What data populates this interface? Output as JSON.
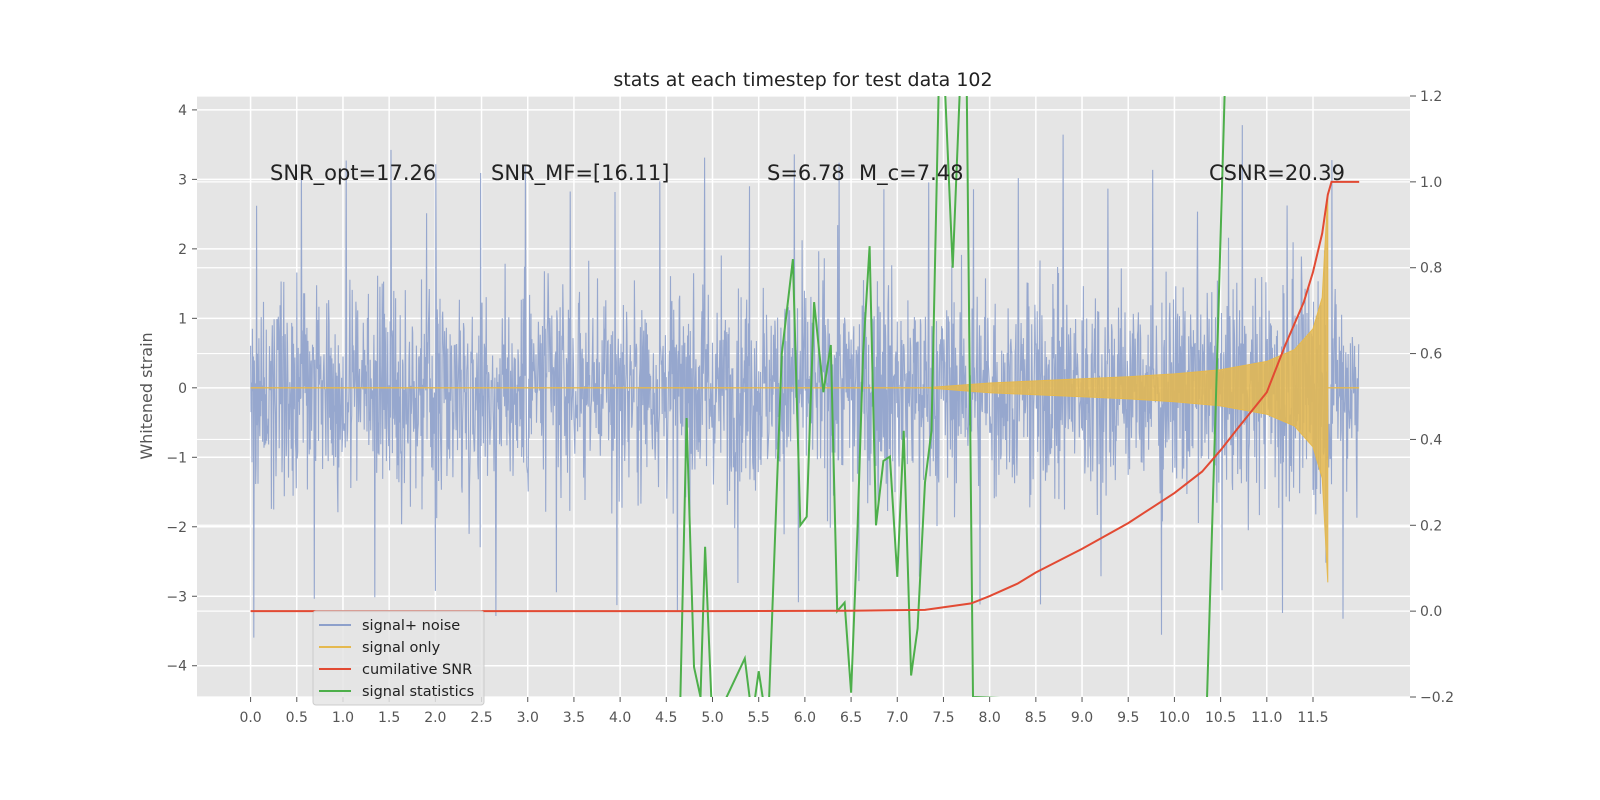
{
  "chart_data": {
    "type": "line",
    "title": "stats at each timestep for test data 102",
    "ylabel": "Whitened strain",
    "ylabel_right": "",
    "xlabel": "",
    "xlim": [
      -0.58,
      12.55
    ],
    "ylim": [
      -4.45,
      4.2
    ],
    "ylim_right": [
      -0.2,
      1.2
    ],
    "x_ticks": [
      "0.0",
      "0.5",
      "1.0",
      "1.5",
      "2.0",
      "2.5",
      "3.0",
      "3.5",
      "4.0",
      "4.5",
      "5.0",
      "5.5",
      "6.0",
      "6.5",
      "7.0",
      "7.5",
      "8.0",
      "8.5",
      "9.0",
      "9.5",
      "10.0",
      "10.5",
      "11.0",
      "11.5"
    ],
    "y_ticks_left": [
      "−4",
      "−3",
      "−2",
      "−1",
      "0",
      "1",
      "2",
      "3",
      "4"
    ],
    "y_ticks_right": [
      "−0.2",
      "0.0",
      "0.2",
      "0.4",
      "0.6",
      "0.8",
      "1.0",
      "1.2"
    ],
    "grid": true,
    "legend_position": "lower-left",
    "annotations": [
      "SNR_opt=17.26",
      "SNR_MF=[16.11]",
      "S=6.78",
      "M_c=7.48",
      "CSNR=20.39"
    ],
    "series": [
      {
        "name": "signal+ noise",
        "axis": "left",
        "color": "#8da0cb",
        "description_x_range": [
          0.0,
          12.0
        ],
        "envelope_typical": [
          -2.0,
          2.0
        ],
        "peaks_max": 3.75,
        "peaks_min": -4.1
      },
      {
        "name": "signal only",
        "axis": "left",
        "color": "#e5b94f",
        "x": [
          7.3,
          7.6,
          8.0,
          8.5,
          9.0,
          9.5,
          10.0,
          10.5,
          11.0,
          11.3,
          11.5,
          11.6,
          11.66
        ],
        "amplitude": [
          0.0,
          0.03,
          0.07,
          0.1,
          0.13,
          0.16,
          0.2,
          0.26,
          0.38,
          0.55,
          0.85,
          1.3,
          2.8
        ]
      },
      {
        "name": "cumilative SNR",
        "axis": "right",
        "color": "#e24a33",
        "x": [
          0.0,
          5.0,
          6.5,
          7.3,
          7.8,
          8.0,
          8.3,
          8.5,
          9.0,
          9.5,
          10.0,
          10.3,
          10.5,
          10.7,
          11.0,
          11.2,
          11.4,
          11.5,
          11.6,
          11.66,
          11.7,
          11.75,
          12.0
        ],
        "values": [
          0.0,
          0.0,
          0.001,
          0.003,
          0.018,
          0.035,
          0.064,
          0.09,
          0.145,
          0.205,
          0.275,
          0.325,
          0.375,
          0.43,
          0.51,
          0.62,
          0.72,
          0.79,
          0.88,
          0.97,
          1.0,
          1.0,
          1.0
        ]
      },
      {
        "name": "signal statistics",
        "axis": "right",
        "color": "#4daf4a",
        "x": [
          4.65,
          4.72,
          4.8,
          4.87,
          4.92,
          5.0,
          5.35,
          5.43,
          5.5,
          5.6,
          5.75,
          5.87,
          5.95,
          6.02,
          6.1,
          6.2,
          6.28,
          6.35,
          6.43,
          6.5,
          6.57,
          6.63,
          6.7,
          6.77,
          6.85,
          6.92,
          7.0,
          7.07,
          7.15,
          7.22,
          7.3,
          7.37,
          7.45,
          7.52,
          7.6,
          7.68,
          7.75,
          7.82,
          10.35,
          10.45,
          10.55
        ],
        "values": [
          -0.22,
          0.45,
          -0.13,
          -0.2,
          0.15,
          -0.27,
          -0.11,
          -0.25,
          -0.14,
          -0.28,
          0.6,
          0.82,
          0.2,
          0.22,
          0.72,
          0.51,
          0.62,
          0.0,
          0.02,
          -0.19,
          0.19,
          0.6,
          0.85,
          0.2,
          0.35,
          0.36,
          0.08,
          0.42,
          -0.15,
          -0.04,
          0.3,
          0.42,
          1.23,
          1.2,
          0.8,
          1.23,
          1.25,
          -0.2,
          -0.22,
          0.5,
          1.25
        ]
      }
    ]
  }
}
